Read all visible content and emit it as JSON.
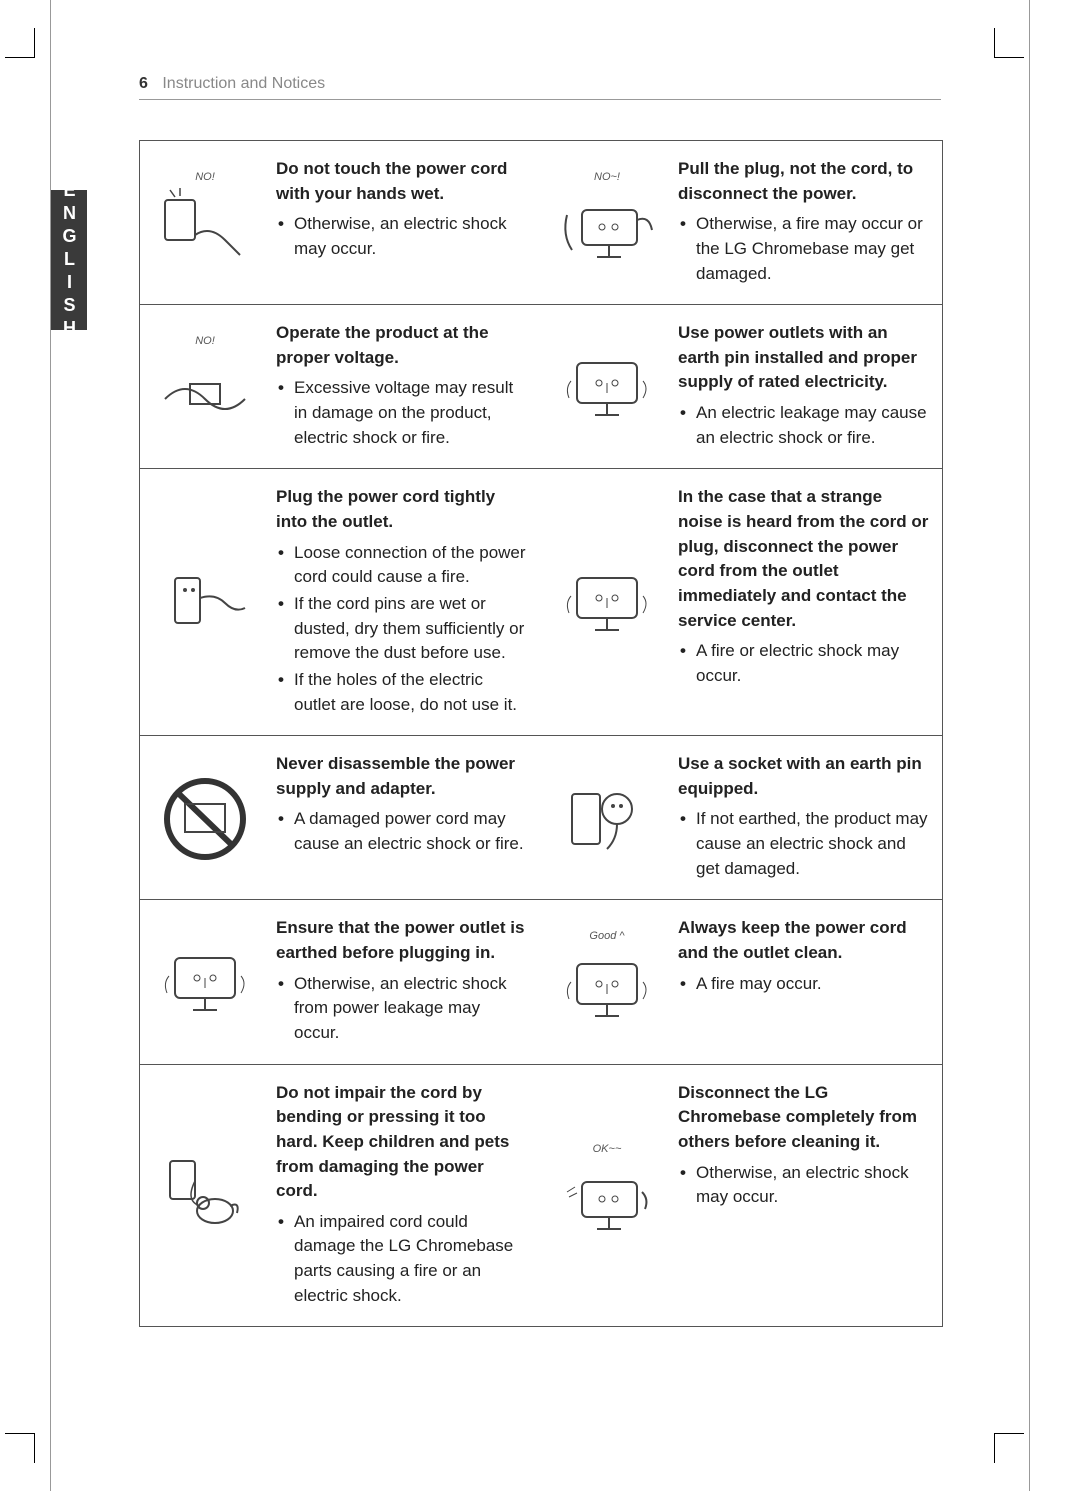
{
  "page_number": "6",
  "header_title": "Instruction and Notices",
  "language_tab": "ENGLISH",
  "colors": {
    "border": "#555555",
    "text": "#222222",
    "muted": "#888888",
    "tab_bg": "#3a3a3a",
    "tab_text": "#ffffff",
    "bg": "#ffffff"
  },
  "rows": [
    {
      "left_icon_label": "NO!",
      "left_heading": "Do not touch the power cord with your hands wet.",
      "left_bullets": [
        "Otherwise, an electric shock may occur."
      ],
      "right_icon_label": "NO~!",
      "right_heading": "Pull the plug, not the cord, to disconnect the power.",
      "right_bullets": [
        "Otherwise, a fire may occur or the LG Chromebase may get damaged."
      ]
    },
    {
      "left_icon_label": "NO!",
      "left_heading": "Operate the product at the proper voltage.",
      "left_bullets": [
        "Excessive voltage may result in damage on the product, electric shock or fire."
      ],
      "right_icon_label": "",
      "right_heading": "Use power outlets with an earth pin installed and proper supply of rated electricity.",
      "right_bullets": [
        "An electric leakage may cause an electric shock or fire."
      ]
    },
    {
      "left_icon_label": "",
      "left_heading": "Plug the power cord tightly into the outlet.",
      "left_bullets": [
        "Loose connection of the power cord could cause a fire.",
        "If the cord pins are wet or dusted, dry them sufficiently or remove the dust before use.",
        "If the holes of the electric outlet are loose, do not use it."
      ],
      "right_icon_label": "",
      "right_heading": "In the case that a strange noise is heard from the cord or plug, disconnect the power cord from the outlet immediately and contact the service center.",
      "right_bullets": [
        "A fire or electric shock may occur."
      ]
    },
    {
      "left_icon_label": "",
      "left_heading": "Never disassemble the power supply and adapter.",
      "left_bullets": [
        "A damaged power cord may cause an electric shock or fire."
      ],
      "right_icon_label": "",
      "right_heading": "Use a socket with an earth pin equipped.",
      "right_bullets": [
        "If not earthed, the product may cause an electric shock and get damaged."
      ]
    },
    {
      "left_icon_label": "",
      "left_heading": "Ensure that the power outlet is earthed before plugging in.",
      "left_bullets": [
        "Otherwise, an electric shock from power leakage may occur."
      ],
      "right_icon_label": "Good ^",
      "right_heading": "Always keep the power cord and the outlet clean.",
      "right_bullets": [
        "A fire may occur."
      ]
    },
    {
      "left_icon_label": "",
      "left_heading": "Do not impair the cord by bending or pressing it too hard. Keep children and pets from damaging the power cord.",
      "left_bullets": [
        "An impaired cord could damage the LG Chromebase parts causing a fire or an electric shock."
      ],
      "right_icon_label": "OK~~",
      "right_heading": "Disconnect the LG Chromebase completely from others before cleaning it.",
      "right_bullets": [
        "Otherwise, an electric shock may occur."
      ]
    }
  ]
}
